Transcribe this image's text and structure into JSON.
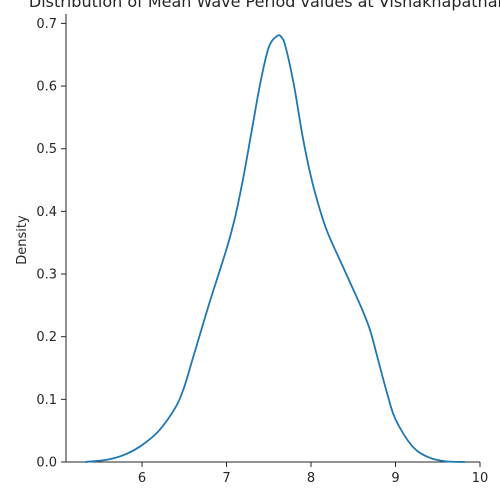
{
  "chart_data": {
    "type": "line",
    "title": "Distribution of Mean Wave Period values at Vishakhapatnam",
    "xlabel": "",
    "ylabel": "Density",
    "xlim": [
      5.1,
      10.0
    ],
    "ylim": [
      0.0,
      0.715
    ],
    "x_ticks": [
      6,
      7,
      8,
      9,
      10
    ],
    "y_ticks": [
      0.0,
      0.1,
      0.2,
      0.3,
      0.4,
      0.5,
      0.6,
      0.7
    ],
    "x_tick_labels": [
      "6",
      "7",
      "8",
      "9",
      "10"
    ],
    "y_tick_labels": [
      "0.0",
      "0.1",
      "0.2",
      "0.3",
      "0.4",
      "0.5",
      "0.6",
      "0.7"
    ],
    "grid": false,
    "series": [
      {
        "color": "#1f77b4",
        "x": [
          5.33,
          5.6,
          5.8,
          6.0,
          6.2,
          6.4,
          6.5,
          6.6,
          6.7,
          6.8,
          7.0,
          7.1,
          7.2,
          7.3,
          7.4,
          7.5,
          7.6,
          7.65,
          7.7,
          7.8,
          7.9,
          8.0,
          8.1,
          8.2,
          8.4,
          8.6,
          8.7,
          8.8,
          8.9,
          9.0,
          9.2,
          9.4,
          9.6,
          9.82
        ],
        "y": [
          0.0,
          0.004,
          0.012,
          0.027,
          0.05,
          0.088,
          0.12,
          0.165,
          0.21,
          0.255,
          0.34,
          0.39,
          0.455,
          0.53,
          0.605,
          0.662,
          0.68,
          0.678,
          0.662,
          0.6,
          0.52,
          0.455,
          0.405,
          0.365,
          0.305,
          0.245,
          0.21,
          0.16,
          0.11,
          0.068,
          0.025,
          0.007,
          0.001,
          0.0
        ]
      }
    ]
  }
}
